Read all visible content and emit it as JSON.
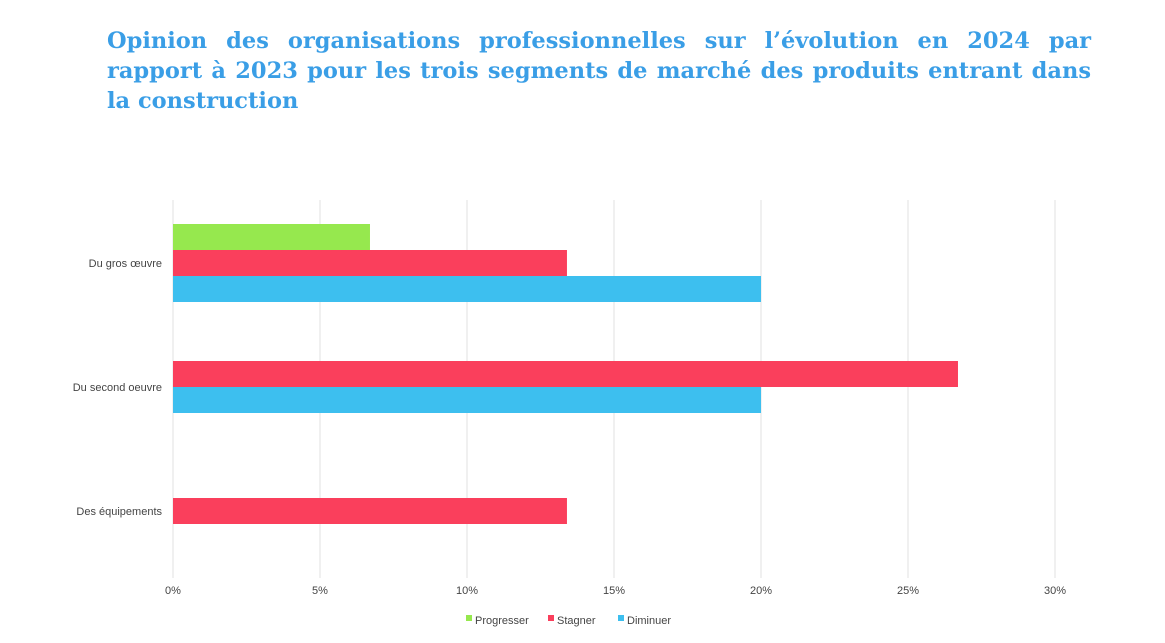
{
  "title": "Opinion des organisations professionnelles sur l’évolution en 2024 par rapport à 2023 pour les trois segments de marché des produits entrant dans la construction",
  "colors": {
    "title": "#3a9ee6",
    "grid": "#e2e2e2",
    "axis_text": "#444444"
  },
  "chart_data": {
    "type": "bar",
    "orientation": "horizontal",
    "title": "",
    "xlabel": "",
    "ylabel": "",
    "xlim": [
      0,
      30
    ],
    "xticks": [
      0,
      5,
      10,
      15,
      20,
      25,
      30
    ],
    "xtick_labels": [
      "0%",
      "5%",
      "10%",
      "15%",
      "20%",
      "25%",
      "30%"
    ],
    "grid": "vertical",
    "legend_position": "bottom",
    "categories": [
      "Du gros œuvre",
      "Du second oeuvre",
      "Des équipements"
    ],
    "series": [
      {
        "name": "Progresser",
        "color": "#96e84e",
        "values": [
          6.7,
          0,
          0
        ]
      },
      {
        "name": "Stagner",
        "color": "#fa3f5c",
        "values": [
          13.4,
          26.7,
          13.4
        ]
      },
      {
        "name": "Diminuer",
        "color": "#3dbfef",
        "values": [
          20,
          20,
          0
        ]
      }
    ]
  }
}
